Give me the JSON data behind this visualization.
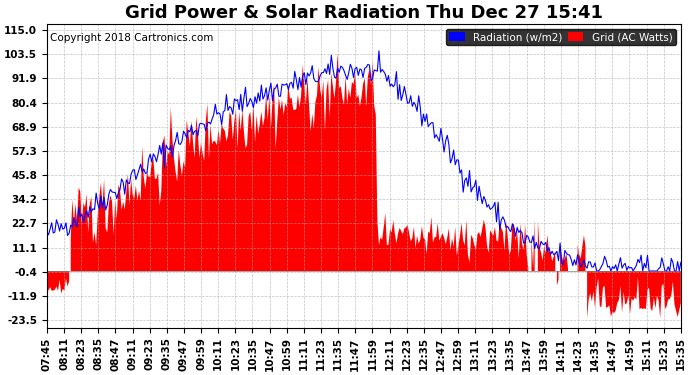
{
  "title": "Grid Power & Solar Radiation Thu Dec 27 15:41",
  "copyright": "Copyright 2018 Cartronics.com",
  "yticks": [
    115.0,
    103.5,
    91.9,
    80.4,
    68.9,
    57.3,
    45.8,
    34.2,
    22.7,
    11.1,
    -0.4,
    -11.9,
    -23.5
  ],
  "ylim": [
    -27,
    118
  ],
  "legend_labels": [
    "Radiation (w/m2)",
    "Grid (AC Watts)"
  ],
  "legend_colors": [
    "#0000ff",
    "#ff0000"
  ],
  "radiation_color": "#0000ff",
  "grid_color": "#ff0000",
  "background_color": "#ffffff",
  "plot_bg_color": "#ffffff",
  "grid_line_color": "#aaaaaa",
  "title_fontsize": 13,
  "copyright_fontsize": 7.5,
  "tick_fontsize": 7.5,
  "n_points": 200,
  "x_start": "07:45",
  "x_end": "15:35",
  "xtick_labels": [
    "07:45",
    "08:11",
    "08:23",
    "08:35",
    "08:47",
    "09:11",
    "09:23",
    "09:35",
    "09:47",
    "09:59",
    "10:11",
    "10:23",
    "10:35",
    "10:47",
    "10:59",
    "11:11",
    "11:23",
    "11:35",
    "11:47",
    "11:59",
    "12:11",
    "12:23",
    "12:35",
    "12:47",
    "12:59",
    "13:11",
    "13:23",
    "13:35",
    "13:47",
    "13:59",
    "14:11",
    "14:23",
    "14:35",
    "14:47",
    "14:59",
    "15:11",
    "15:23",
    "15:35"
  ]
}
